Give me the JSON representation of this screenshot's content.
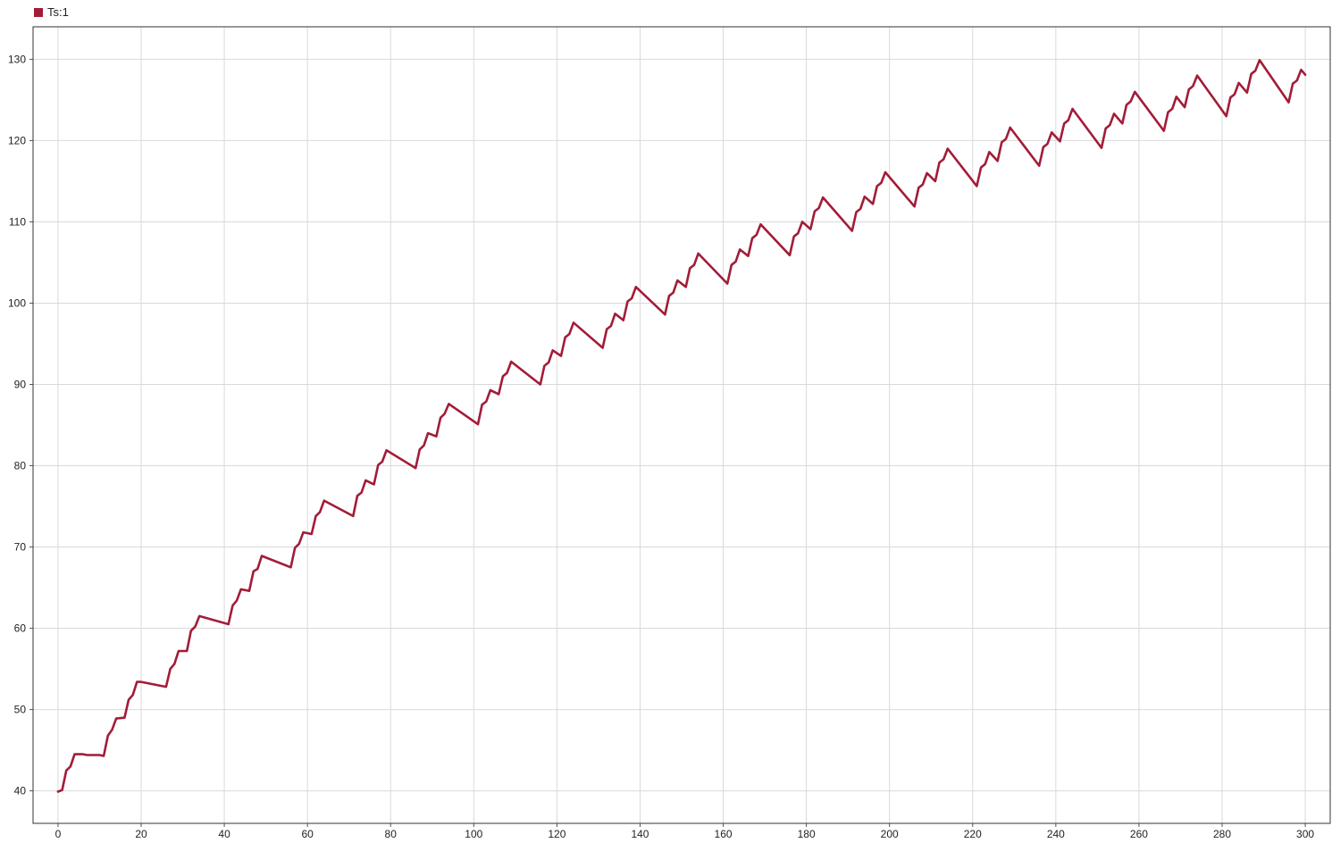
{
  "legend": {
    "label": "Ts:1",
    "color": "#A21C38"
  },
  "chart_data": {
    "type": "line",
    "title": "",
    "xlabel": "",
    "ylabel": "",
    "xlim": [
      -6,
      306
    ],
    "ylim": [
      36,
      134
    ],
    "x_ticks": [
      0,
      20,
      40,
      60,
      80,
      100,
      120,
      140,
      160,
      180,
      200,
      220,
      240,
      260,
      280,
      300
    ],
    "y_ticks": [
      40,
      50,
      60,
      70,
      80,
      90,
      100,
      110,
      120,
      130
    ],
    "grid": true,
    "legend_position": "top-left",
    "series": [
      {
        "name": "Ts:1",
        "color": "#A21C38",
        "points": [
          [
            0,
            39.9
          ],
          [
            1,
            40.1
          ],
          [
            2,
            42.5
          ],
          [
            3,
            43.0
          ],
          [
            4,
            44.5
          ],
          [
            6,
            44.5
          ],
          [
            7,
            44.4
          ],
          [
            10,
            44.4
          ],
          [
            11,
            44.3
          ],
          [
            12,
            46.8
          ],
          [
            13,
            47.5
          ],
          [
            14,
            48.9
          ],
          [
            16,
            49.0
          ],
          [
            17,
            51.2
          ],
          [
            18,
            51.8
          ],
          [
            19,
            53.4
          ],
          [
            20,
            53.4
          ],
          [
            26,
            52.8
          ],
          [
            27,
            55.0
          ],
          [
            28,
            55.6
          ],
          [
            29,
            57.2
          ],
          [
            31,
            57.2
          ],
          [
            32,
            59.7
          ],
          [
            33,
            60.2
          ],
          [
            34,
            61.5
          ],
          [
            41,
            60.5
          ],
          [
            42,
            62.8
          ],
          [
            43,
            63.4
          ],
          [
            44,
            64.8
          ],
          [
            46,
            64.6
          ],
          [
            47,
            67.0
          ],
          [
            48,
            67.3
          ],
          [
            49,
            68.9
          ],
          [
            56,
            67.5
          ],
          [
            57,
            69.9
          ],
          [
            58,
            70.4
          ],
          [
            59,
            71.8
          ],
          [
            61,
            71.6
          ],
          [
            62,
            73.8
          ],
          [
            63,
            74.3
          ],
          [
            64,
            75.7
          ],
          [
            71,
            73.8
          ],
          [
            72,
            76.3
          ],
          [
            73,
            76.7
          ],
          [
            74,
            78.2
          ],
          [
            76,
            77.7
          ],
          [
            77,
            80.1
          ],
          [
            78,
            80.5
          ],
          [
            79,
            81.9
          ],
          [
            86,
            79.7
          ],
          [
            87,
            82.0
          ],
          [
            88,
            82.5
          ],
          [
            89,
            84.0
          ],
          [
            91,
            83.6
          ],
          [
            92,
            85.9
          ],
          [
            93,
            86.4
          ],
          [
            94,
            87.6
          ],
          [
            101,
            85.1
          ],
          [
            102,
            87.5
          ],
          [
            103,
            87.9
          ],
          [
            104,
            89.3
          ],
          [
            106,
            88.8
          ],
          [
            107,
            91.0
          ],
          [
            108,
            91.4
          ],
          [
            109,
            92.8
          ],
          [
            116,
            90.0
          ],
          [
            117,
            92.3
          ],
          [
            118,
            92.7
          ],
          [
            119,
            94.2
          ],
          [
            121,
            93.5
          ],
          [
            122,
            95.8
          ],
          [
            123,
            96.2
          ],
          [
            124,
            97.6
          ],
          [
            131,
            94.5
          ],
          [
            132,
            96.8
          ],
          [
            133,
            97.2
          ],
          [
            134,
            98.7
          ],
          [
            136,
            97.9
          ],
          [
            137,
            100.2
          ],
          [
            138,
            100.6
          ],
          [
            139,
            102.0
          ],
          [
            146,
            98.6
          ],
          [
            147,
            100.9
          ],
          [
            148,
            101.3
          ],
          [
            149,
            102.8
          ],
          [
            151,
            102.0
          ],
          [
            152,
            104.3
          ],
          [
            153,
            104.7
          ],
          [
            154,
            106.1
          ],
          [
            161,
            102.4
          ],
          [
            162,
            104.7
          ],
          [
            163,
            105.1
          ],
          [
            164,
            106.6
          ],
          [
            166,
            105.8
          ],
          [
            167,
            108.0
          ],
          [
            168,
            108.4
          ],
          [
            169,
            109.7
          ],
          [
            176,
            105.9
          ],
          [
            177,
            108.2
          ],
          [
            178,
            108.6
          ],
          [
            179,
            110.0
          ],
          [
            181,
            109.1
          ],
          [
            182,
            111.3
          ],
          [
            183,
            111.7
          ],
          [
            184,
            113.0
          ],
          [
            191,
            108.9
          ],
          [
            192,
            111.2
          ],
          [
            193,
            111.6
          ],
          [
            194,
            113.1
          ],
          [
            196,
            112.2
          ],
          [
            197,
            114.4
          ],
          [
            198,
            114.8
          ],
          [
            199,
            116.1
          ],
          [
            206,
            111.9
          ],
          [
            207,
            114.2
          ],
          [
            208,
            114.6
          ],
          [
            209,
            116.0
          ],
          [
            211,
            115.0
          ],
          [
            212,
            117.3
          ],
          [
            213,
            117.7
          ],
          [
            214,
            119.0
          ],
          [
            221,
            114.4
          ],
          [
            222,
            116.7
          ],
          [
            223,
            117.1
          ],
          [
            224,
            118.6
          ],
          [
            226,
            117.5
          ],
          [
            227,
            119.8
          ],
          [
            228,
            120.2
          ],
          [
            229,
            121.6
          ],
          [
            236,
            116.9
          ],
          [
            237,
            119.2
          ],
          [
            238,
            119.6
          ],
          [
            239,
            121.0
          ],
          [
            241,
            119.9
          ],
          [
            242,
            122.1
          ],
          [
            243,
            122.5
          ],
          [
            244,
            123.9
          ],
          [
            251,
            119.1
          ],
          [
            252,
            121.5
          ],
          [
            253,
            121.9
          ],
          [
            254,
            123.3
          ],
          [
            256,
            122.1
          ],
          [
            257,
            124.4
          ],
          [
            258,
            124.8
          ],
          [
            259,
            126.0
          ],
          [
            266,
            121.2
          ],
          [
            267,
            123.5
          ],
          [
            268,
            123.9
          ],
          [
            269,
            125.4
          ],
          [
            271,
            124.1
          ],
          [
            272,
            126.3
          ],
          [
            273,
            126.7
          ],
          [
            274,
            128.0
          ],
          [
            281,
            123.0
          ],
          [
            282,
            125.3
          ],
          [
            283,
            125.7
          ],
          [
            284,
            127.1
          ],
          [
            286,
            125.9
          ],
          [
            287,
            128.2
          ],
          [
            288,
            128.6
          ],
          [
            289,
            129.9
          ],
          [
            296,
            124.7
          ],
          [
            297,
            127.0
          ],
          [
            298,
            127.4
          ],
          [
            299,
            128.7
          ],
          [
            300,
            128.1
          ]
        ]
      }
    ]
  }
}
